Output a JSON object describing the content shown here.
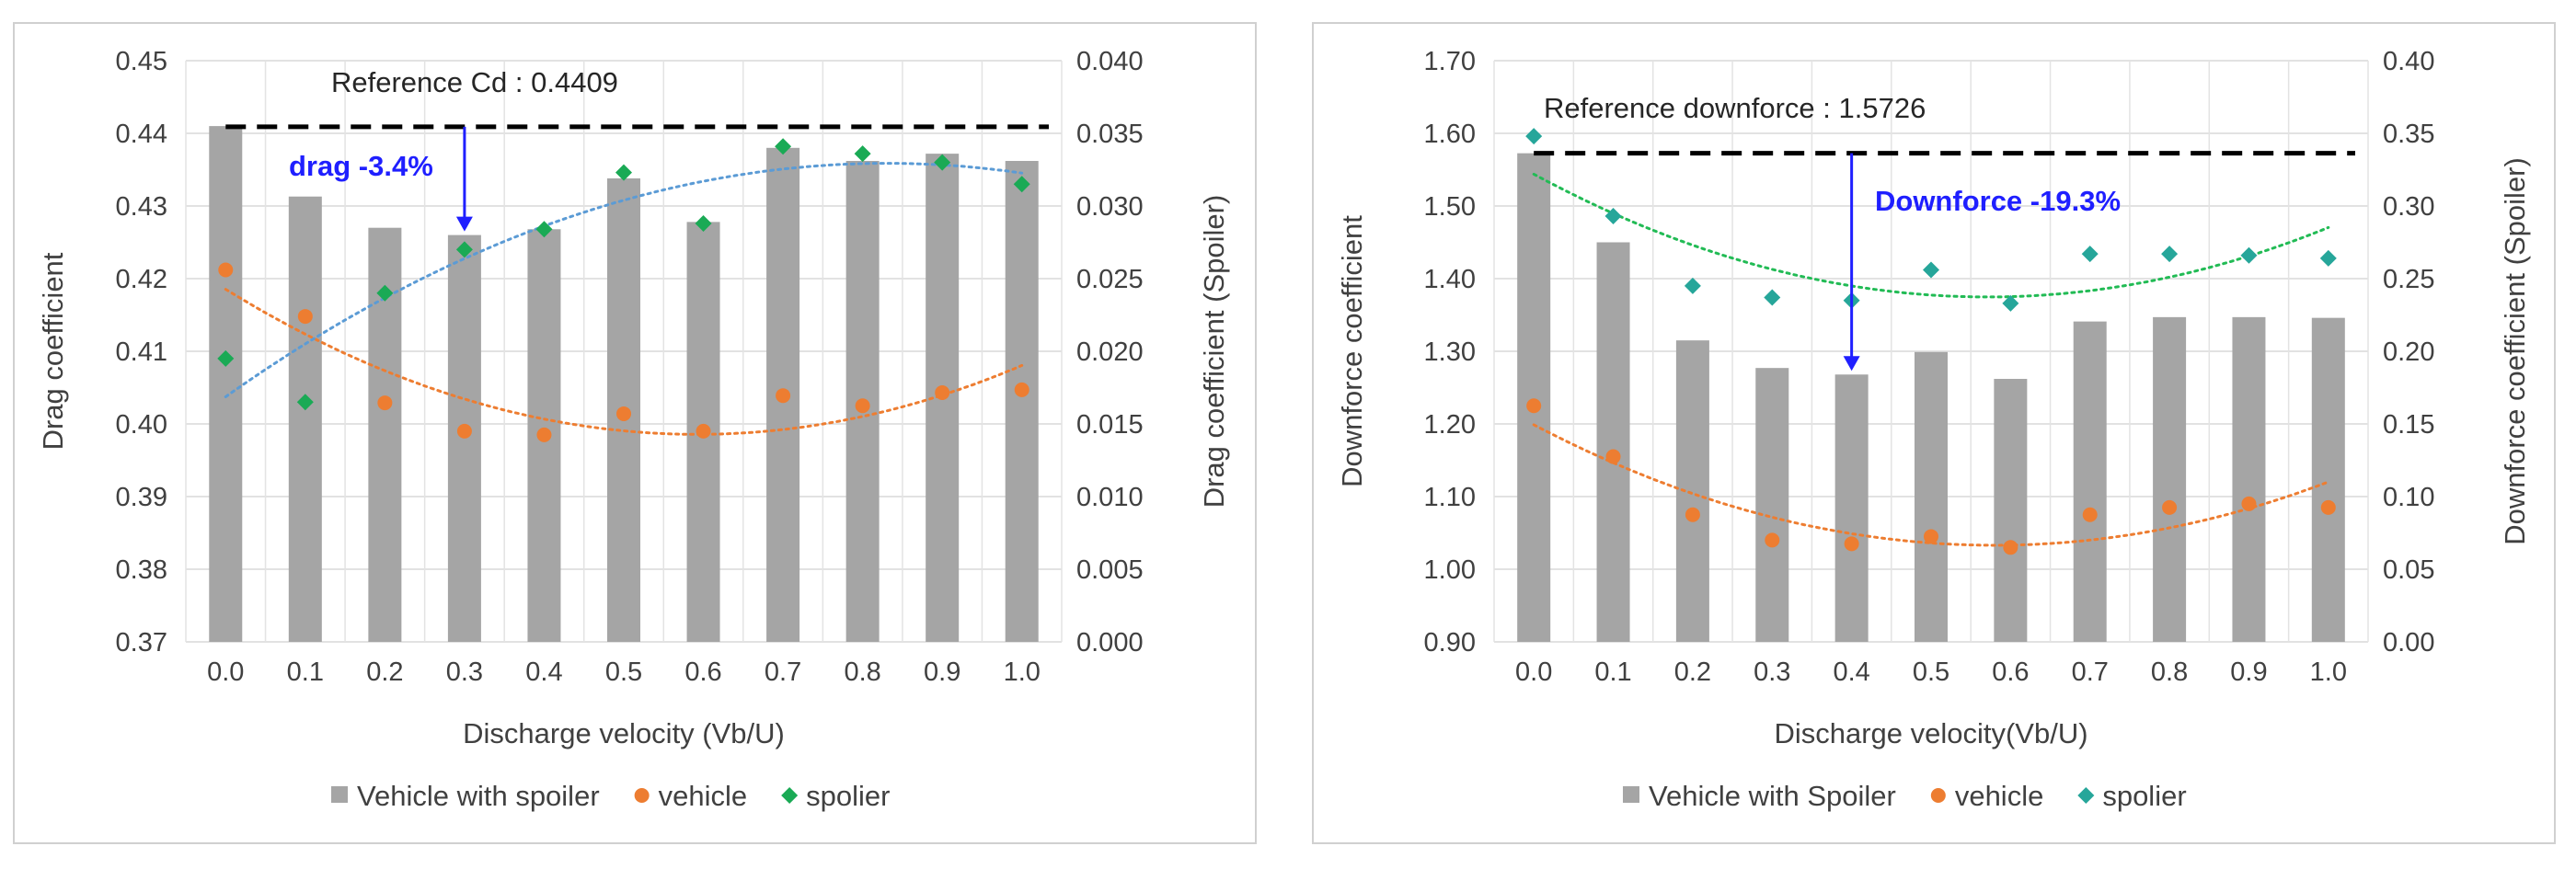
{
  "colors": {
    "bar": "#a5a5a5",
    "vehicle": "#ed7d31",
    "spoiler_drag": "#1aaa55",
    "spoiler_down": "#26a69a",
    "trend_spoiler_drag": "#5b9bd5",
    "trend_spoiler_down": "#22bb55",
    "annotation": "#1f1fff",
    "reference": "#000000"
  },
  "chart_data": [
    {
      "type": "bar",
      "categories": [
        "0.0",
        "0.1",
        "0.2",
        "0.3",
        "0.4",
        "0.5",
        "0.6",
        "0.7",
        "0.8",
        "0.9",
        "1.0"
      ],
      "xlabel": "Discharge velocity (Vb/U)",
      "ylabel": "Drag coefficient",
      "y2label": "Drag coefficient (Spoiler)",
      "ylim": [
        0.37,
        0.45
      ],
      "y2lim": [
        0.0,
        0.04
      ],
      "yticks": [
        "0.37",
        "0.38",
        "0.39",
        "0.40",
        "0.41",
        "0.42",
        "0.43",
        "0.44",
        "0.45"
      ],
      "y2ticks": [
        "0.000",
        "0.005",
        "0.010",
        "0.015",
        "0.020",
        "0.025",
        "0.030",
        "0.035",
        "0.040"
      ],
      "grid": true,
      "series": [
        {
          "name": "Vehicle with spoiler",
          "kind": "bar",
          "axis": "left",
          "values": [
            0.441,
            0.4313,
            0.427,
            0.426,
            0.4268,
            0.4338,
            0.4278,
            0.438,
            0.4362,
            0.4372,
            0.4362
          ]
        },
        {
          "name": "vehicle",
          "kind": "scatter",
          "axis": "left",
          "trend": "poly2",
          "values": [
            0.4212,
            0.4148,
            0.4029,
            0.399,
            0.3985,
            0.4014,
            0.399,
            0.4039,
            0.4025,
            0.4043,
            0.4047
          ]
        },
        {
          "name": "spolier",
          "kind": "scatter",
          "axis": "right",
          "trend": "poly2",
          "values": [
            0.0195,
            0.0165,
            0.024,
            0.027,
            0.0284,
            0.0323,
            0.0288,
            0.0341,
            0.0336,
            0.033,
            0.0315
          ]
        }
      ],
      "reference": {
        "label": "Reference Cd : 0.4409",
        "value": 0.4409
      },
      "annotation": {
        "label": "drag -3.4%",
        "at": "0.3"
      },
      "legend": "bottom"
    },
    {
      "type": "bar",
      "categories": [
        "0.0",
        "0.1",
        "0.2",
        "0.3",
        "0.4",
        "0.5",
        "0.6",
        "0.7",
        "0.8",
        "0.9",
        "1.0"
      ],
      "xlabel": "Discharge velocity(Vb/U)",
      "ylabel": "Downforce coefficient",
      "y2label": "Downforce coefficient (Spoiler)",
      "ylim": [
        0.9,
        1.7
      ],
      "y2lim": [
        0.0,
        0.4
      ],
      "yticks": [
        "0.90",
        "1.00",
        "1.10",
        "1.20",
        "1.30",
        "1.40",
        "1.50",
        "1.60",
        "1.70"
      ],
      "y2ticks": [
        "0.00",
        "0.05",
        "0.10",
        "0.15",
        "0.20",
        "0.25",
        "0.30",
        "0.35",
        "0.40"
      ],
      "grid": true,
      "series": [
        {
          "name": "Vehicle with Spoiler",
          "kind": "bar",
          "axis": "left",
          "values": [
            1.5726,
            1.45,
            1.315,
            1.277,
            1.268,
            1.299,
            1.262,
            1.341,
            1.347,
            1.347,
            1.346
          ]
        },
        {
          "name": "vehicle",
          "kind": "scatter",
          "axis": "left",
          "trend": "poly2",
          "values": [
            1.225,
            1.155,
            1.075,
            1.04,
            1.035,
            1.045,
            1.03,
            1.075,
            1.085,
            1.09,
            1.085
          ]
        },
        {
          "name": "spolier",
          "kind": "scatter",
          "axis": "right",
          "trend": "poly2",
          "values": [
            0.348,
            0.293,
            0.245,
            0.237,
            0.235,
            0.256,
            0.233,
            0.267,
            0.267,
            0.266,
            0.264
          ]
        }
      ],
      "reference": {
        "label": "Reference downforce  : 1.5726",
        "value": 1.5726
      },
      "annotation": {
        "label": "Downforce -19.3%",
        "at": "0.4"
      },
      "legend": "bottom"
    }
  ]
}
